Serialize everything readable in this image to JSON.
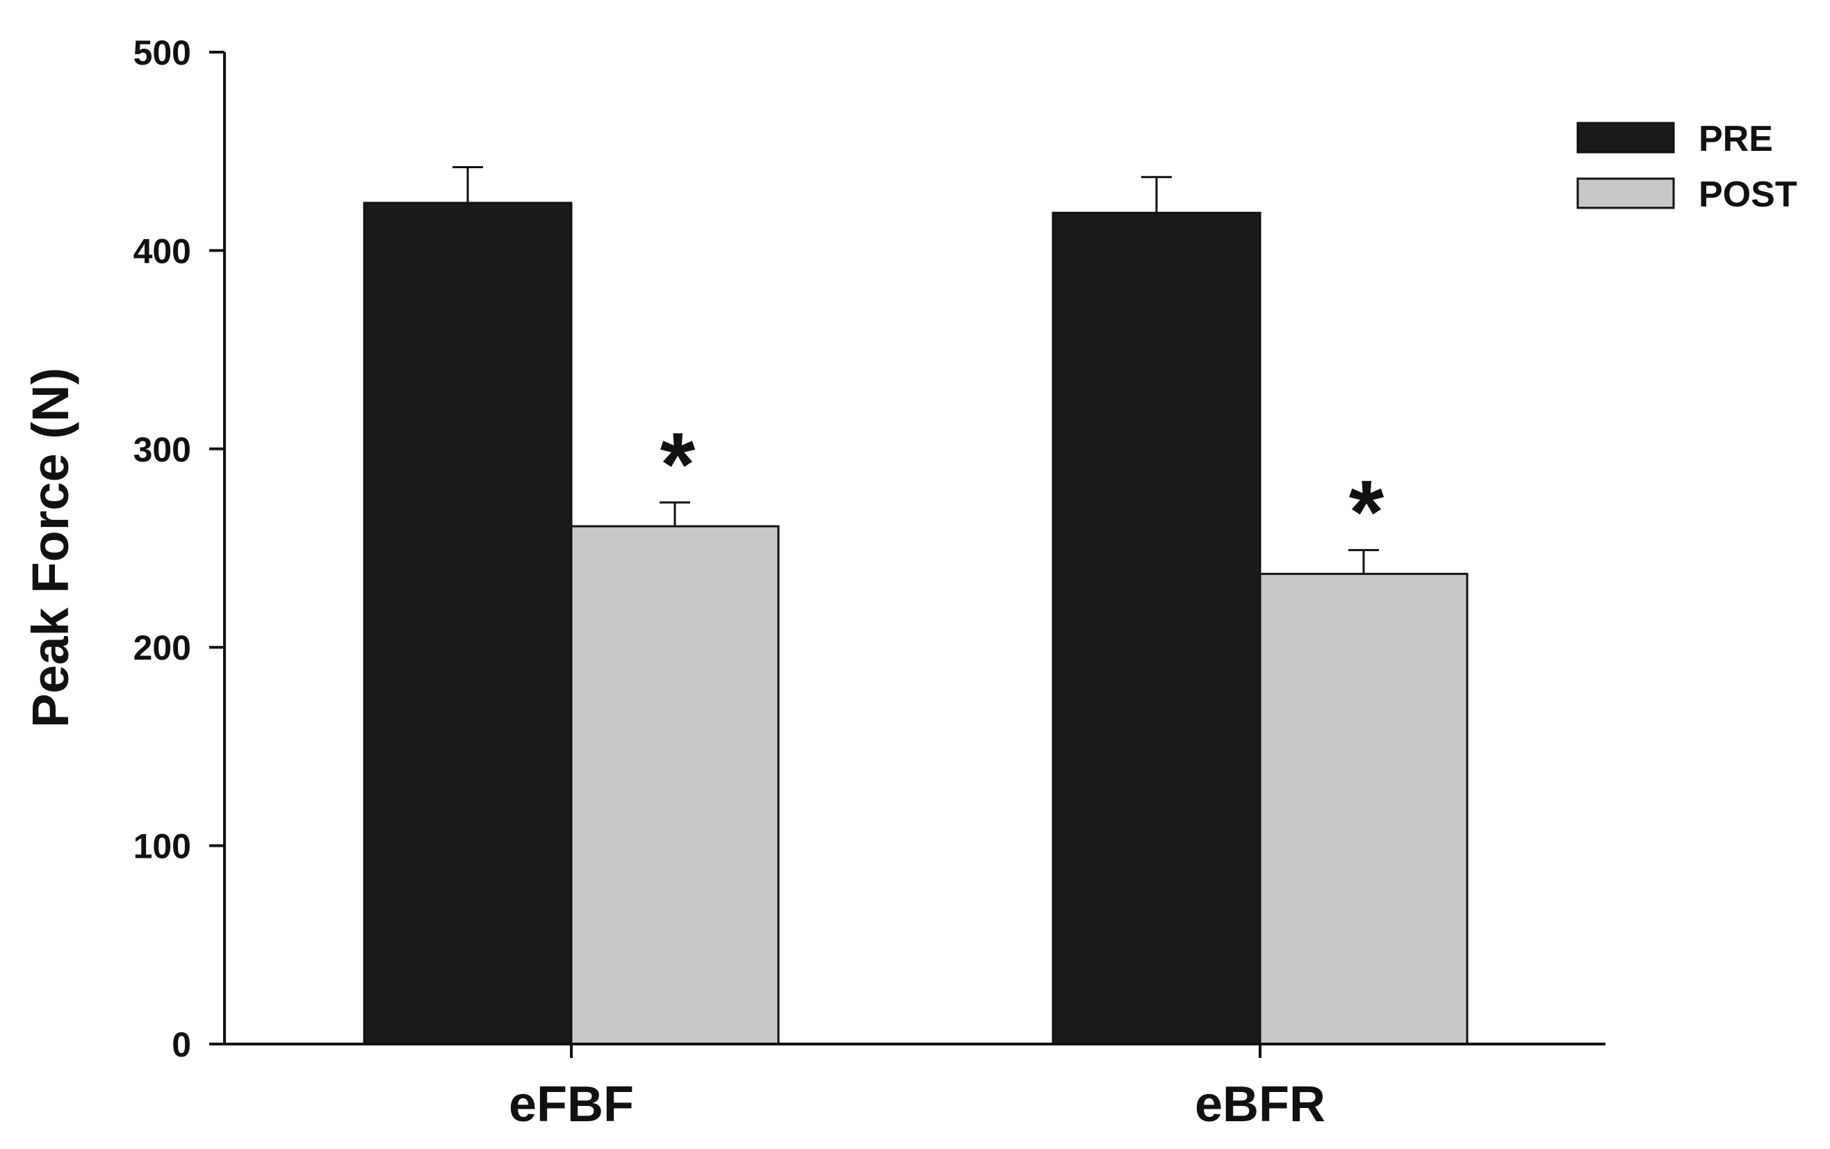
{
  "chart_data": {
    "type": "bar",
    "title": "",
    "xlabel": "",
    "ylabel": "Peak Force (N)",
    "ylim": [
      0,
      500
    ],
    "yticks": [
      0,
      100,
      200,
      300,
      400,
      500
    ],
    "categories": [
      "eFBF",
      "eBFR"
    ],
    "series": [
      {
        "name": "PRE",
        "color": "#1a1a1a",
        "values": [
          424,
          419
        ],
        "error": [
          18,
          18
        ]
      },
      {
        "name": "POST",
        "color": "#c8c8c8",
        "values": [
          261,
          237
        ],
        "error": [
          12,
          12
        ]
      }
    ],
    "significance": [
      {
        "category": "eFBF",
        "series": "POST",
        "label": "*"
      },
      {
        "category": "eBFR",
        "series": "POST",
        "label": "*"
      }
    ],
    "legend_position": "top-right",
    "grid": false
  }
}
